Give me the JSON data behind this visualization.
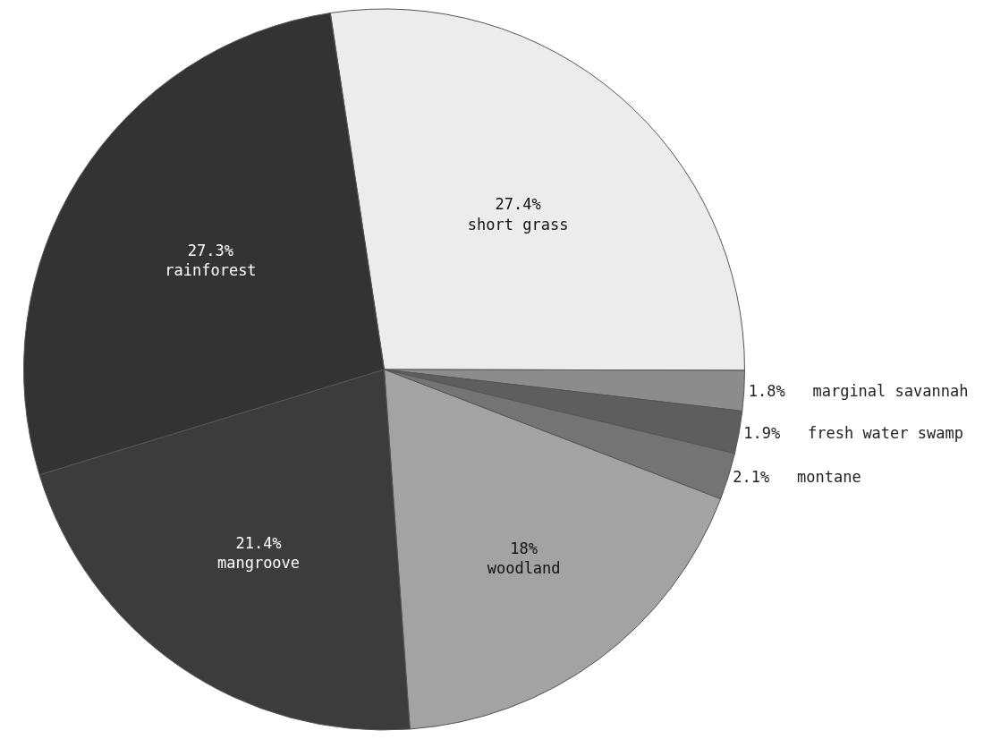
{
  "chart_data": {
    "type": "pie",
    "categories": [
      "short grass",
      "marginal savannah",
      "fresh water swamp",
      "montane",
      "woodland",
      "mangroove",
      "rainforest"
    ],
    "values": [
      27.4,
      1.8,
      1.9,
      2.1,
      18,
      21.4,
      27.3
    ],
    "value_labels": [
      "27.4%",
      "1.8%",
      "1.9%",
      "2.1%",
      "18%",
      "21.4%",
      "27.3%"
    ],
    "colors": [
      "#ececec",
      "#8c8c8c",
      "#5e5e5e",
      "#747474",
      "#a3a3a3",
      "#3c3c3c",
      "#333333"
    ],
    "legend": false
  }
}
